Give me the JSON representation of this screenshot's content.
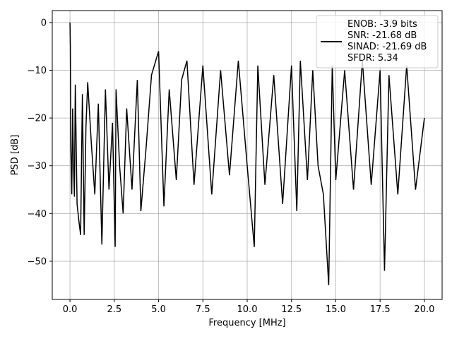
{
  "chart_data": {
    "type": "line",
    "title": "",
    "xlabel": "Frequency [MHz]",
    "ylabel": "PSD [dB]",
    "xlim": [
      -1.0,
      21.0
    ],
    "ylim": [
      -58.0,
      2.5
    ],
    "xticks": [
      0.0,
      2.5,
      5.0,
      7.5,
      10.0,
      12.5,
      15.0,
      17.5,
      20.0
    ],
    "xtick_labels": [
      "0.0",
      "2.5",
      "5.0",
      "7.5",
      "10.0",
      "12.5",
      "15.0",
      "17.5",
      "20.0"
    ],
    "yticks": [
      0,
      -10,
      -20,
      -30,
      -40,
      -50
    ],
    "ytick_labels": [
      "0",
      "−10",
      "−20",
      "−30",
      "−40",
      "−50"
    ],
    "grid": true,
    "legend_position": "top-right",
    "legend_lines": [
      "ENOB: -3.9 bits",
      "SNR: -21.68 dB",
      "SINAD: -21.69 dB",
      "SFDR: 5.34"
    ],
    "series": [
      {
        "color": "#000000",
        "x": [
          0.0,
          0.02,
          0.05,
          0.1,
          0.15,
          0.2,
          0.25,
          0.3,
          0.4,
          0.5,
          0.6,
          0.7,
          0.8,
          0.9,
          1.0,
          1.2,
          1.4,
          1.6,
          1.8,
          2.0,
          2.2,
          2.4,
          2.55,
          2.6,
          2.8,
          3.0,
          3.2,
          3.5,
          3.8,
          4.0,
          4.3,
          4.6,
          5.0,
          5.3,
          5.6,
          6.0,
          6.3,
          6.6,
          7.0,
          7.5,
          8.0,
          8.5,
          9.0,
          9.5,
          10.0,
          10.4,
          10.6,
          11.0,
          11.5,
          12.0,
          12.5,
          12.8,
          13.0,
          13.4,
          13.7,
          14.0,
          14.3,
          14.6,
          14.8,
          15.0,
          15.5,
          16.0,
          16.5,
          17.0,
          17.5,
          17.75,
          18.0,
          18.5,
          19.0,
          19.5,
          20.0
        ],
        "y": [
          0.0,
          -5.0,
          -26.5,
          -36.0,
          -18.0,
          -30.0,
          -36.5,
          -13.0,
          -38.0,
          -41.5,
          -44.5,
          -15.0,
          -44.5,
          -22.0,
          -12.5,
          -25.0,
          -36.0,
          -17.0,
          -46.5,
          -14.0,
          -35.0,
          -21.0,
          -47.0,
          -14.0,
          -30.0,
          -40.0,
          -18.0,
          -35.0,
          -12.0,
          -39.5,
          -26.0,
          -11.0,
          -6.0,
          -38.5,
          -14.0,
          -33.0,
          -12.0,
          -8.0,
          -34.0,
          -9.0,
          -36.0,
          -10.0,
          -32.0,
          -8.0,
          -30.0,
          -47.0,
          -9.0,
          -34.0,
          -11.0,
          -38.0,
          -9.0,
          -39.5,
          -8.0,
          -33.0,
          -10.0,
          -30.0,
          -36.0,
          -55.0,
          -9.0,
          -33.0,
          -10.0,
          -35.0,
          -8.0,
          -34.0,
          -10.0,
          -52.0,
          -11.0,
          -36.0,
          -9.0,
          -35.0,
          -20.0
        ]
      }
    ]
  }
}
